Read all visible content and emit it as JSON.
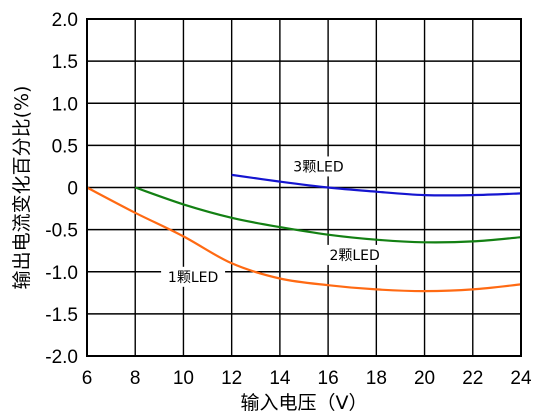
{
  "chart_data": {
    "type": "line",
    "title": "",
    "xlabel": "输入电压（V）",
    "ylabel": "输出电流变化百分比(%)",
    "xlim": [
      6,
      24
    ],
    "ylim": [
      -2.0,
      2.0
    ],
    "xticks": [
      6,
      8,
      10,
      12,
      14,
      16,
      18,
      20,
      22,
      24
    ],
    "xtick_labels": [
      "6",
      "8",
      "10",
      "12",
      "14",
      "16",
      "18",
      "20",
      "22",
      "24"
    ],
    "yticks": [
      2.0,
      1.5,
      1.0,
      0.5,
      0,
      -0.5,
      -1.0,
      -1.5,
      -2.0
    ],
    "ytick_labels": [
      "2.0",
      "1.5",
      "1.0",
      "0.5",
      "0",
      "-0.5",
      "-1.0",
      "-1.5",
      "-2.0"
    ],
    "grid": true,
    "series": [
      {
        "name": "1颗LED",
        "color": "#ff6a13",
        "x": [
          6,
          8,
          10,
          12,
          14,
          16,
          18,
          20,
          22,
          24
        ],
        "y": [
          0,
          -0.3,
          -0.58,
          -0.9,
          -1.08,
          -1.16,
          -1.21,
          -1.23,
          -1.21,
          -1.15
        ]
      },
      {
        "name": "2颗LED",
        "color": "#138013",
        "x": [
          8,
          10,
          12,
          14,
          16,
          18,
          20,
          22,
          24
        ],
        "y": [
          0,
          -0.2,
          -0.36,
          -0.47,
          -0.56,
          -0.62,
          -0.65,
          -0.64,
          -0.59
        ]
      },
      {
        "name": "3颗LED",
        "color": "#1515d0",
        "x": [
          12,
          14,
          16,
          18,
          20,
          22,
          24
        ],
        "y": [
          0.15,
          0.07,
          0.0,
          -0.05,
          -0.09,
          -0.09,
          -0.07
        ]
      }
    ],
    "annotations": [
      "1颗LED",
      "2颗LED",
      "3颗LED"
    ]
  }
}
